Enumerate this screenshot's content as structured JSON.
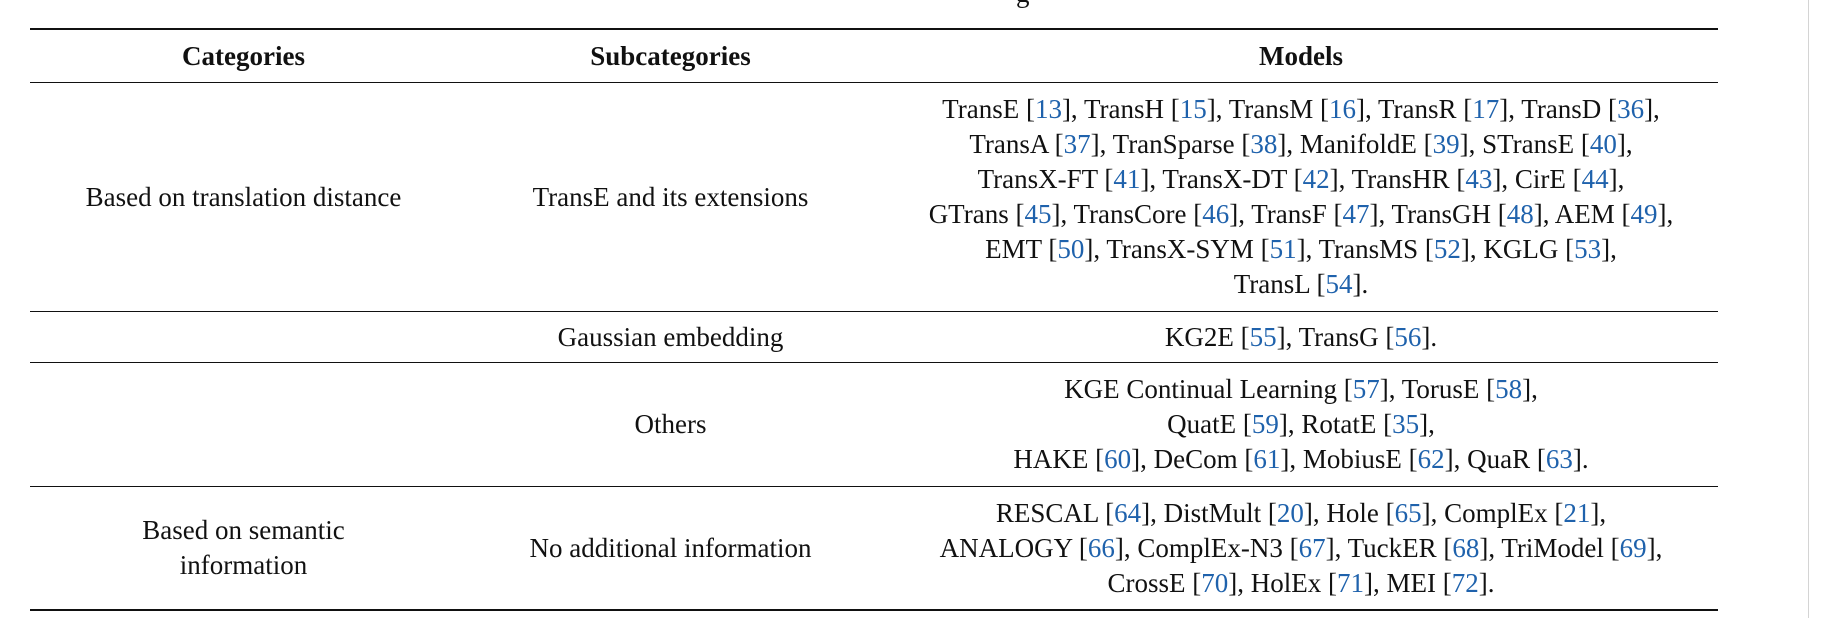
{
  "caption_fragment": "g",
  "table": {
    "headers": {
      "categories": "Categories",
      "subcategories": "Subcategories",
      "models": "Models"
    },
    "rows": [
      {
        "category": "Based on translation distance",
        "subcategory": "TransE and its extensions",
        "lines": [
          [
            [
              "TransE [",
              ""
            ],
            [
              "13",
              "ref"
            ],
            [
              "], TransH [",
              ""
            ],
            [
              "15",
              "ref"
            ],
            [
              "], TransM [",
              ""
            ],
            [
              "16",
              "ref"
            ],
            [
              "], TransR [",
              ""
            ],
            [
              "17",
              "ref"
            ],
            [
              "], TransD [",
              ""
            ],
            [
              "36",
              "ref"
            ],
            [
              "],",
              ""
            ]
          ],
          [
            [
              "TransA [",
              ""
            ],
            [
              "37",
              "ref"
            ],
            [
              "], TranSparse [",
              ""
            ],
            [
              "38",
              "ref"
            ],
            [
              "], ManifoldE [",
              ""
            ],
            [
              "39",
              "ref"
            ],
            [
              "], STransE [",
              ""
            ],
            [
              "40",
              "ref"
            ],
            [
              "],",
              ""
            ]
          ],
          [
            [
              "TransX-FT [",
              ""
            ],
            [
              "41",
              "ref"
            ],
            [
              "], TransX-DT [",
              ""
            ],
            [
              "42",
              "ref"
            ],
            [
              "], TransHR [",
              ""
            ],
            [
              "43",
              "ref"
            ],
            [
              "], CirE [",
              ""
            ],
            [
              "44",
              "ref"
            ],
            [
              "],",
              ""
            ]
          ],
          [
            [
              "GTrans [",
              ""
            ],
            [
              "45",
              "ref"
            ],
            [
              "], TransCore [",
              ""
            ],
            [
              "46",
              "ref"
            ],
            [
              "], TransF [",
              ""
            ],
            [
              "47",
              "ref"
            ],
            [
              "], TransGH [",
              ""
            ],
            [
              "48",
              "ref"
            ],
            [
              "], AEM [",
              ""
            ],
            [
              "49",
              "ref"
            ],
            [
              "],",
              ""
            ]
          ],
          [
            [
              "EMT [",
              ""
            ],
            [
              "50",
              "ref"
            ],
            [
              "], TransX-SYM [",
              ""
            ],
            [
              "51",
              "ref"
            ],
            [
              "], TransMS [",
              ""
            ],
            [
              "52",
              "ref"
            ],
            [
              "], KGLG [",
              ""
            ],
            [
              "53",
              "ref"
            ],
            [
              "],",
              ""
            ]
          ],
          [
            [
              "TransL [",
              ""
            ],
            [
              "54",
              "ref"
            ],
            [
              "].",
              ""
            ]
          ]
        ]
      },
      {
        "category": "",
        "subcategory": "Gaussian embedding",
        "lines": [
          [
            [
              "KG2E [",
              ""
            ],
            [
              "55",
              "ref"
            ],
            [
              "], TransG [",
              ""
            ],
            [
              "56",
              "ref"
            ],
            [
              "].",
              ""
            ]
          ]
        ]
      },
      {
        "category": "",
        "subcategory": "Others",
        "lines": [
          [
            [
              "KGE Continual Learning [",
              ""
            ],
            [
              "57",
              "ref"
            ],
            [
              "], TorusE [",
              ""
            ],
            [
              "58",
              "ref"
            ],
            [
              "],",
              ""
            ]
          ],
          [
            [
              "QuatE [",
              ""
            ],
            [
              "59",
              "ref"
            ],
            [
              "], RotatE [",
              ""
            ],
            [
              "35",
              "ref"
            ],
            [
              "],",
              ""
            ]
          ],
          [
            [
              "HAKE [",
              ""
            ],
            [
              "60",
              "ref"
            ],
            [
              "], DeCom [",
              ""
            ],
            [
              "61",
              "ref"
            ],
            [
              "], MobiusE [",
              ""
            ],
            [
              "62",
              "ref"
            ],
            [
              "], QuaR [",
              ""
            ],
            [
              "63",
              "ref"
            ],
            [
              "].",
              ""
            ]
          ]
        ]
      },
      {
        "category_lines": [
          "Based on semantic",
          "information"
        ],
        "subcategory": "No additional information",
        "lines": [
          [
            [
              "RESCAL [",
              ""
            ],
            [
              "64",
              "ref"
            ],
            [
              "], DistMult [",
              ""
            ],
            [
              "20",
              "ref"
            ],
            [
              "], Hole [",
              ""
            ],
            [
              "65",
              "ref"
            ],
            [
              "], ComplEx [",
              ""
            ],
            [
              "21",
              "ref"
            ],
            [
              "],",
              ""
            ]
          ],
          [
            [
              "ANALOGY [",
              ""
            ],
            [
              "66",
              "ref"
            ],
            [
              "], ComplEx-N3 [",
              ""
            ],
            [
              "67",
              "ref"
            ],
            [
              "], TuckER [",
              ""
            ],
            [
              "68",
              "ref"
            ],
            [
              "], TriModel [",
              ""
            ],
            [
              "69",
              "ref"
            ],
            [
              "],",
              ""
            ]
          ],
          [
            [
              "CrossE [",
              ""
            ],
            [
              "70",
              "ref"
            ],
            [
              "], HolEx [",
              ""
            ],
            [
              "71",
              "ref"
            ],
            [
              "], MEI [",
              ""
            ],
            [
              "72",
              "ref"
            ],
            [
              "].",
              ""
            ]
          ]
        ]
      }
    ]
  },
  "colors": {
    "text": "#111111",
    "citation_link": "#1f62ac",
    "rule": "#111111"
  }
}
